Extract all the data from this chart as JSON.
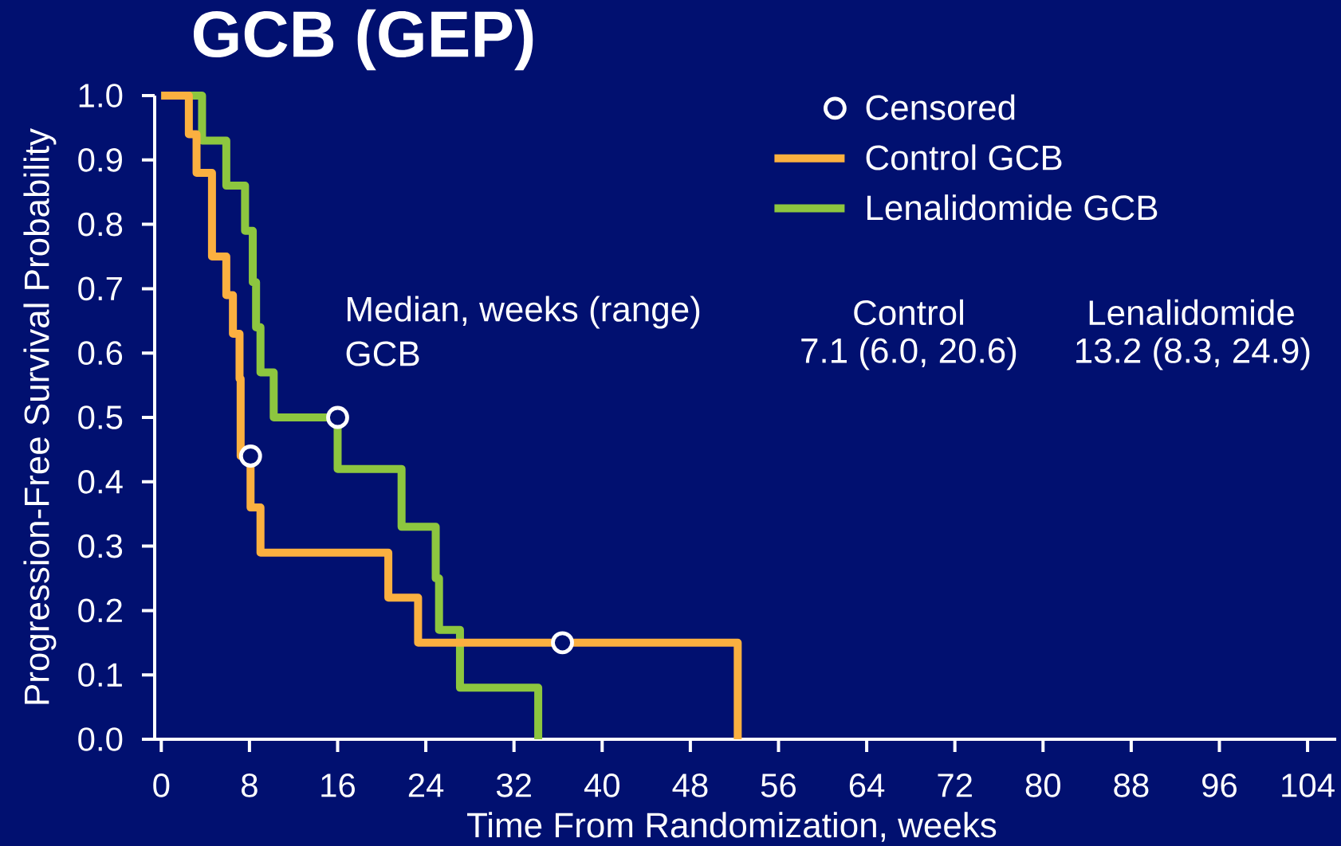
{
  "chart_data": {
    "type": "step",
    "title": "GCB (GEP)",
    "xlabel": "Time From Randomization, weeks",
    "ylabel": "Progression-Free Survival Probability",
    "xlim": [
      -0.6,
      106.6
    ],
    "ylim": [
      0,
      1
    ],
    "xticks": [
      0,
      8,
      16,
      24,
      32,
      40,
      48,
      56,
      64,
      72,
      80,
      88,
      96,
      104
    ],
    "yticks": [
      {
        "value": 0,
        "label": "0.0"
      },
      0.1,
      0.2,
      0.3,
      0.4,
      0.5,
      0.6,
      0.7,
      0.8,
      0.9,
      {
        "value": 1,
        "label": "1.0"
      }
    ],
    "legend": "top right",
    "series": [
      {
        "name": "Censored",
        "type": "scatter",
        "marker": "circle",
        "color": "#ffffff",
        "x": [
          8.1,
          16.0,
          36.4
        ],
        "values": [
          0.44,
          0.5,
          0.15
        ]
      },
      {
        "name": "Control GCB",
        "color": "#fbb040",
        "x": [
          0,
          2.5,
          3.2,
          4.6,
          5.9,
          6.5,
          7.1,
          7.2,
          8.1,
          9.0,
          20.6,
          23.3,
          52.3
        ],
        "values": [
          1,
          0.94,
          0.88,
          0.75,
          0.69,
          0.63,
          0.56,
          0.44,
          0.36,
          0.29,
          0.22,
          0.15,
          0
        ]
      },
      {
        "name": "Lenalidomide GCB",
        "color": "#8dc63f",
        "x": [
          0,
          3.7,
          5.9,
          7.6,
          8.3,
          8.6,
          9.0,
          10.2,
          16.0,
          21.8,
          24.9,
          25.2,
          27.1,
          34.2
        ],
        "values": [
          1,
          0.93,
          0.86,
          0.79,
          0.71,
          0.64,
          0.57,
          0.5,
          0.42,
          0.33,
          0.25,
          0.17,
          0.08,
          0
        ]
      }
    ],
    "annotations": [
      "Median, weeks (range)",
      "GCB",
      "Control",
      "7.1 (6.0, 20.6)",
      "Lenalidomide",
      "13.2 (8.3, 24.9)"
    ]
  }
}
